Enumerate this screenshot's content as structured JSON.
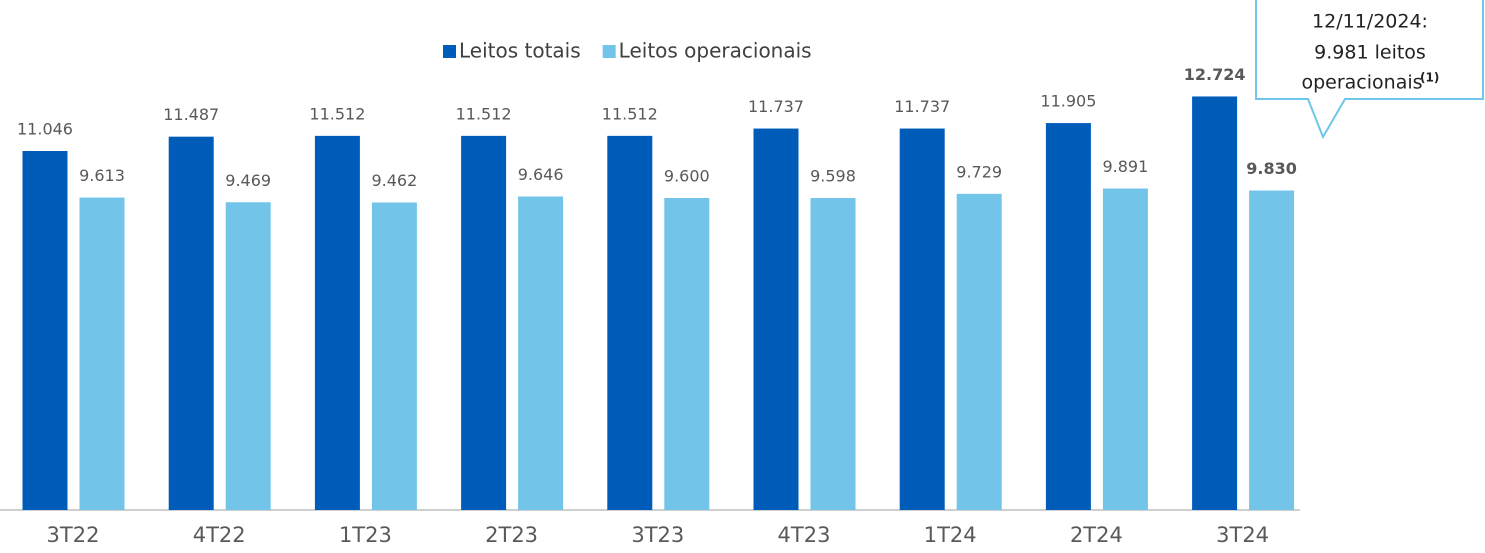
{
  "chart_data": {
    "type": "bar",
    "categories": [
      "3T22",
      "4T22",
      "1T23",
      "2T23",
      "3T23",
      "4T23",
      "1T24",
      "2T24",
      "3T24"
    ],
    "series": [
      {
        "name": "Leitos totais",
        "color": "#005cb9",
        "values": [
          11046,
          11487,
          11512,
          11512,
          11512,
          11737,
          11737,
          11905,
          12724
        ],
        "value_labels": [
          "11.046",
          "11.487",
          "11.512",
          "11.512",
          "11.512",
          "11.737",
          "11.737",
          "11.905",
          "12.724"
        ]
      },
      {
        "name": "Leitos operacionais",
        "color": "#72c5e8",
        "values": [
          9613,
          9469,
          9462,
          9646,
          9600,
          9598,
          9729,
          9891,
          9830
        ],
        "value_labels": [
          "9.613",
          "9.469",
          "9.462",
          "9.646",
          "9.600",
          "9.598",
          "9.729",
          "9.891",
          "9.830"
        ]
      }
    ],
    "ylim": [
      0,
      14000
    ],
    "legend": "top",
    "annotation": {
      "lines": [
        "12/11/2024:",
        "9.981 leitos",
        "operacionais"
      ],
      "superscript": "(1)"
    }
  }
}
